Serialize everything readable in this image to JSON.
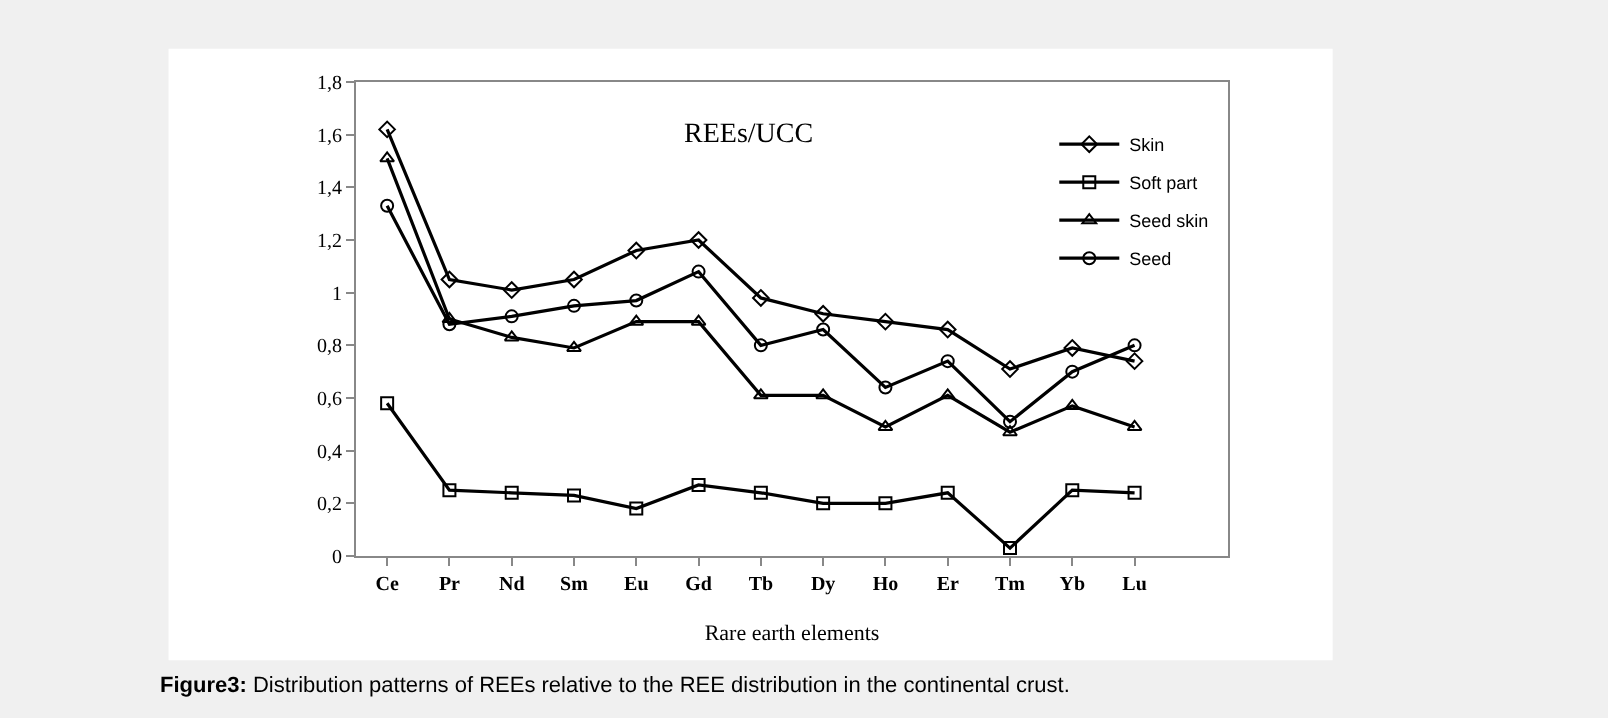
{
  "chart_data": {
    "type": "line",
    "title": "REEs/UCC",
    "xlabel": "Rare earth elements",
    "categories": [
      "Ce",
      "Pr",
      "Nd",
      "Sm",
      "Eu",
      "Gd",
      "Tb",
      "Dy",
      "Ho",
      "Er",
      "Tm",
      "Yb",
      "Lu"
    ],
    "series": [
      {
        "name": "Skin",
        "color": "#000000",
        "marker": "diamond",
        "values": [
          1.62,
          1.05,
          1.01,
          1.05,
          1.16,
          1.2,
          0.98,
          0.92,
          0.89,
          0.86,
          0.71,
          0.79,
          0.74
        ]
      },
      {
        "name": "Soft part",
        "color": "#000000",
        "marker": "square",
        "values": [
          0.58,
          0.25,
          0.24,
          0.23,
          0.18,
          0.27,
          0.24,
          0.2,
          0.2,
          0.24,
          0.03,
          0.25,
          0.24
        ]
      },
      {
        "name": "Seed skin",
        "color": "#000000",
        "marker": "triangle",
        "values": [
          1.51,
          0.9,
          0.83,
          0.79,
          0.89,
          0.89,
          0.61,
          0.61,
          0.49,
          0.61,
          0.47,
          0.57,
          0.49
        ]
      },
      {
        "name": "Seed",
        "color": "#000000",
        "marker": "circle",
        "values": [
          1.33,
          0.88,
          0.91,
          0.95,
          0.97,
          1.08,
          0.8,
          0.86,
          0.64,
          0.74,
          0.51,
          0.7,
          0.8
        ]
      }
    ],
    "ylim": [
      0,
      1.8
    ],
    "yticks": [
      0,
      {
        "value": 0.2,
        "label": "0,2"
      },
      {
        "value": 0.4,
        "label": "0,4"
      },
      {
        "value": 0.6,
        "label": "0,6"
      },
      {
        "value": 0.8,
        "label": "0,8"
      },
      1,
      {
        "value": 1.2,
        "label": "1,2"
      },
      {
        "value": 1.4,
        "label": "1,4"
      },
      {
        "value": 1.6,
        "label": "1,6"
      },
      {
        "value": 1.8,
        "label": "1,8"
      }
    ],
    "legend": "top right",
    "line_style": "solid",
    "annotations": [
      "Figure3: Distribution patterns of REEs relative to the REE distribution in the continental crust."
    ]
  }
}
